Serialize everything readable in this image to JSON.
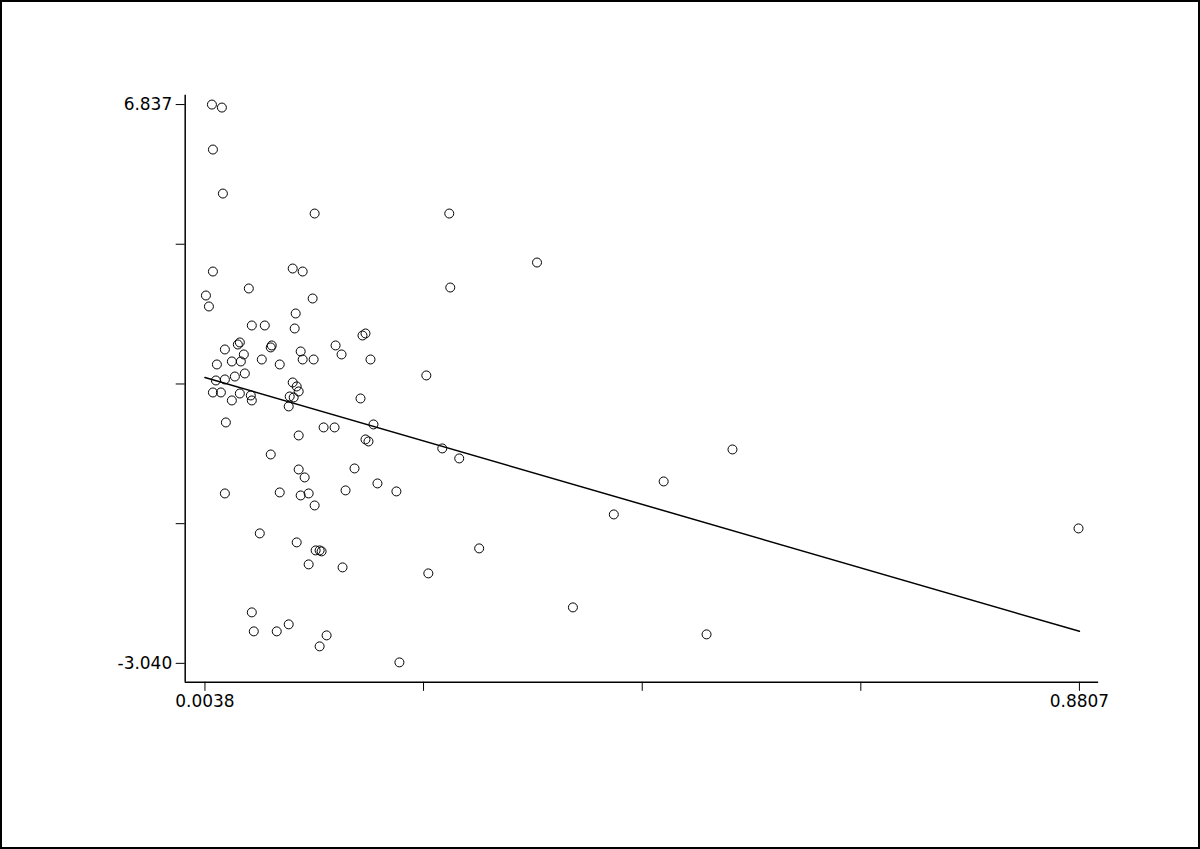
{
  "chart_data": {
    "type": "scatter",
    "marker": "circle",
    "color": "#000000",
    "grid": false,
    "xlim": [
      -0.016,
      0.9
    ],
    "ylim": [
      -3.376,
      7.0
    ],
    "xticks": [
      0.0038,
      {
        "value": 0.223,
        "label": null
      },
      {
        "value": 0.4423,
        "label": null
      },
      {
        "value": 0.6615,
        "label": null
      },
      0.8807
    ],
    "yticks": [
      {
        "value": -3.04,
        "label": "-3.040"
      },
      {
        "value": -0.571,
        "label": null
      },
      {
        "value": 1.898,
        "label": null
      },
      {
        "value": 4.368,
        "label": null
      },
      6.837
    ],
    "x": [
      0.0108,
      0.0208,
      0.0118,
      0.0218,
      0.1138,
      0.2488,
      0.3368,
      0.0118,
      0.0918,
      0.1018,
      0.2498,
      0.0478,
      0.0048,
      0.0078,
      0.1118,
      0.0948,
      0.0508,
      0.0638,
      0.0938,
      0.1648,
      0.1618,
      0.0388,
      0.0368,
      0.0708,
      0.0698,
      0.1348,
      0.0238,
      0.0998,
      0.1408,
      0.0428,
      0.0398,
      0.0308,
      0.0158,
      0.0608,
      0.1018,
      0.1128,
      0.1698,
      0.0788,
      0.0438,
      0.0338,
      0.0238,
      0.0148,
      0.0918,
      0.0958,
      0.2258,
      0.0118,
      0.0198,
      0.0388,
      0.0498,
      0.0978,
      0.0888,
      0.0928,
      0.0308,
      0.0508,
      0.1598,
      0.0878,
      0.1728,
      0.0248,
      0.1228,
      0.1338,
      0.0978,
      0.1648,
      0.1678,
      0.2418,
      0.2588,
      0.5328,
      0.0698,
      0.1538,
      0.0978,
      0.1038,
      0.4638,
      0.1768,
      0.0238,
      0.0788,
      0.0998,
      0.1448,
      0.1958,
      0.1078,
      0.1138,
      0.4138,
      0.8798,
      0.0588,
      0.0958,
      0.2788,
      0.1148,
      0.1208,
      0.1188,
      0.1078,
      0.1418,
      0.2278,
      0.3728,
      0.0508,
      0.0528,
      0.0878,
      0.0758,
      0.1258,
      0.5068,
      0.1188,
      0.1988
    ],
    "y": [
      6.837,
      6.784,
      6.042,
      5.264,
      4.911,
      4.911,
      4.045,
      3.886,
      3.939,
      3.886,
      3.603,
      3.586,
      3.462,
      3.268,
      3.409,
      3.144,
      2.932,
      2.932,
      2.879,
      2.791,
      2.755,
      2.632,
      2.596,
      2.579,
      2.544,
      2.579,
      2.508,
      2.473,
      2.42,
      2.42,
      2.296,
      2.296,
      2.243,
      2.331,
      2.331,
      2.331,
      2.331,
      2.243,
      2.084,
      2.03,
      1.978,
      1.96,
      1.925,
      1.854,
      2.049,
      1.748,
      1.748,
      1.73,
      1.695,
      1.766,
      1.677,
      1.66,
      1.607,
      1.607,
      1.642,
      1.501,
      1.183,
      1.218,
      1.13,
      1.13,
      0.988,
      0.918,
      0.882,
      0.759,
      0.582,
      0.741,
      0.652,
      0.405,
      0.387,
      0.246,
      0.175,
      0.14,
      -0.037,
      -0.019,
      -0.072,
      0.017,
      -0.001,
      -0.037,
      -0.249,
      -0.408,
      -0.655,
      -0.743,
      -0.902,
      -1.008,
      -1.044,
      -1.061,
      -1.044,
      -1.291,
      -1.344,
      -1.45,
      -2.051,
      -2.139,
      -2.475,
      -2.351,
      -2.475,
      -2.546,
      -2.528,
      -2.74,
      -3.023
    ],
    "trend_line": {
      "x": [
        0.0038,
        0.8807
      ],
      "y": [
        2.014,
        -2.474
      ],
      "line_style": "solid"
    }
  }
}
